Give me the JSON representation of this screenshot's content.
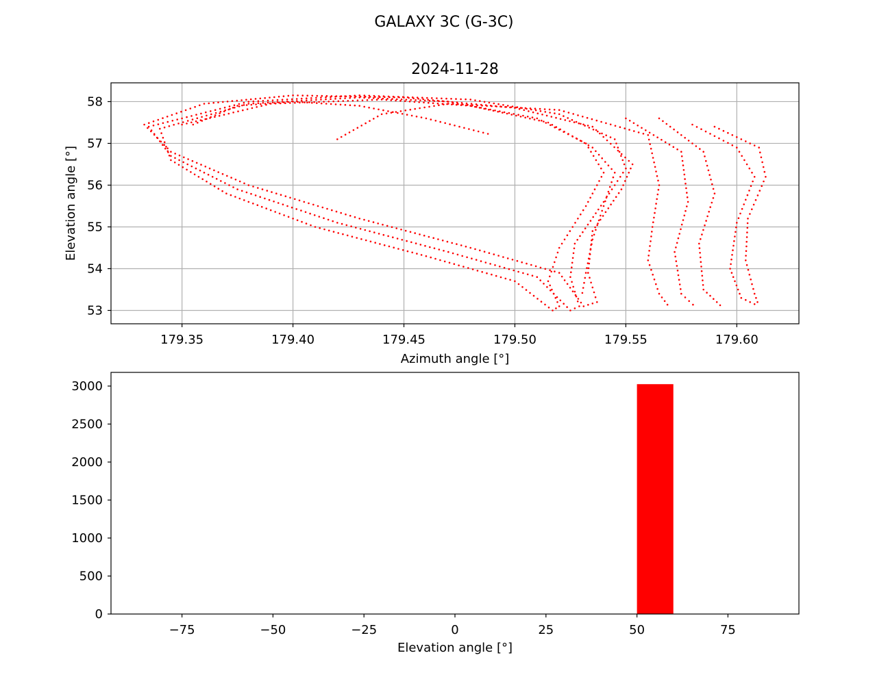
{
  "figure": {
    "suptitle": "GALAXY 3C (G-3C)"
  },
  "chart_data": [
    {
      "type": "scatter",
      "title": "2024-11-28",
      "xlabel": "Azimuth angle [°]",
      "ylabel": "Elevation angle [°]",
      "xlim": [
        179.318,
        179.628
      ],
      "ylim": [
        52.68,
        58.45
      ],
      "xticks": [
        179.35,
        179.4,
        179.45,
        179.5,
        179.55,
        179.6
      ],
      "xtick_labels": [
        "179.35",
        "179.40",
        "179.45",
        "179.50",
        "179.55",
        "179.60"
      ],
      "yticks": [
        53,
        54,
        55,
        56,
        57,
        58
      ],
      "ytick_labels": [
        "53",
        "54",
        "55",
        "56",
        "57",
        "58"
      ],
      "grid": true,
      "marker_color": "#ff0000",
      "marker": "small dot",
      "trajectory": {
        "description_of_shape": "nested daily loops drifting in azimuth",
        "loops": [
          {
            "x": [
              179.333,
              179.36,
              179.4,
              179.45,
              179.5,
              179.535,
              179.553,
              179.548,
              179.535,
              179.533,
              179.537,
              179.531,
              179.52,
              179.48,
              179.43,
              179.38,
              179.345,
              179.333
            ],
            "y": [
              57.45,
              57.95,
              58.15,
              58.1,
              57.85,
              57.4,
              56.5,
              55.9,
              54.9,
              53.9,
              53.2,
              53.1,
              53.9,
              54.5,
              55.2,
              56.0,
              56.8,
              57.45
            ]
          },
          {
            "x": [
              179.335,
              179.38,
              179.43,
              179.48,
              179.52,
              179.545,
              179.55,
              179.54,
              179.527,
              179.525,
              179.529,
              179.525,
              179.51,
              179.47,
              179.42,
              179.375,
              179.345,
              179.335
            ],
            "y": [
              57.4,
              58.0,
              58.15,
              58.05,
              57.7,
              57.1,
              56.4,
              55.6,
              54.6,
              53.8,
              53.1,
              53.0,
              53.8,
              54.4,
              55.1,
              55.9,
              56.7,
              57.4
            ]
          },
          {
            "x": [
              179.34,
              179.38,
              179.43,
              179.47,
              179.51,
              179.532,
              179.54,
              179.532,
              179.52,
              179.515,
              179.52,
              179.517,
              179.5,
              179.46,
              179.41,
              179.37,
              179.345,
              179.34
            ],
            "y": [
              57.35,
              57.95,
              58.1,
              58.0,
              57.6,
              57.0,
              56.3,
              55.5,
              54.5,
              53.7,
              53.1,
              53.0,
              53.7,
              54.3,
              55.0,
              55.8,
              56.6,
              57.35
            ]
          },
          {
            "x": [
              179.35,
              179.39,
              179.44,
              179.48,
              179.515,
              179.535,
              179.545,
              179.54,
              179.535,
              179.532,
              179.53
            ],
            "y": [
              57.45,
              57.95,
              58.05,
              57.9,
              57.5,
              56.9,
              56.3,
              55.5,
              54.7,
              53.9,
              53.3
            ]
          },
          {
            "x": [
              179.355,
              179.375,
              179.4,
              179.43,
              179.46,
              179.49
            ],
            "y": [
              57.45,
              57.9,
              58.0,
              57.9,
              57.6,
              57.2
            ]
          },
          {
            "x": [
              179.42,
              179.44,
              179.47,
              179.52,
              179.56,
              179.565,
              179.562,
              179.56,
              179.565,
              179.57
            ],
            "y": [
              57.1,
              57.7,
              57.95,
              57.8,
              57.2,
              56.0,
              55.0,
              54.2,
              53.4,
              53.05
            ]
          },
          {
            "x": [
              179.55,
              179.575,
              179.578,
              179.572,
              179.575,
              179.582
            ],
            "y": [
              57.6,
              56.8,
              55.6,
              54.4,
              53.4,
              53.05
            ]
          },
          {
            "x": [
              179.565,
              179.585,
              179.59,
              179.583,
              179.585,
              179.594
            ],
            "y": [
              57.6,
              56.8,
              55.8,
              54.6,
              53.5,
              53.05
            ]
          },
          {
            "x": [
              179.58,
              179.6,
              179.608,
              179.6,
              179.597,
              179.602,
              179.61
            ],
            "y": [
              57.45,
              56.9,
              56.2,
              55.1,
              54.0,
              53.3,
              53.1
            ]
          },
          {
            "x": [
              179.59,
              179.61,
              179.613,
              179.605,
              179.604,
              179.608,
              179.61
            ],
            "y": [
              57.4,
              56.9,
              56.2,
              55.2,
              54.2,
              53.4,
              53.1
            ]
          }
        ]
      }
    },
    {
      "type": "bar",
      "xlabel": "Elevation angle [°]",
      "ylabel": "",
      "xlim": [
        -94.5,
        94.5
      ],
      "ylim": [
        0,
        3180
      ],
      "xticks": [
        -75,
        -50,
        -25,
        0,
        25,
        50,
        75
      ],
      "xtick_labels": [
        "−75",
        "−50",
        "−25",
        "0",
        "25",
        "50",
        "75"
      ],
      "yticks": [
        0,
        500,
        1000,
        1500,
        2000,
        2500,
        3000
      ],
      "ytick_labels": [
        "0",
        "500",
        "1000",
        "1500",
        "2000",
        "2500",
        "3000"
      ],
      "grid": false,
      "bar_color": "#ff0000",
      "bins": [
        {
          "start": 50,
          "end": 60,
          "count": 3025
        }
      ]
    }
  ]
}
